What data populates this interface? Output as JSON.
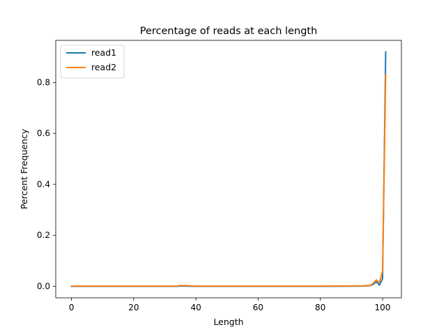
{
  "chart_data": {
    "type": "line",
    "title": "Percentage of reads at each length",
    "xlabel": "Length",
    "ylabel": "Percent Frequency",
    "xlim": [
      -5.05,
      106.05
    ],
    "ylim": [
      -0.045,
      0.965
    ],
    "xticks": [
      0,
      20,
      40,
      60,
      80,
      100
    ],
    "xtick_labels": [
      "0",
      "20",
      "40",
      "60",
      "80",
      "100"
    ],
    "yticks": [
      0.0,
      0.2,
      0.4,
      0.6,
      0.8
    ],
    "ytick_labels": [
      "0.0",
      "0.2",
      "0.4",
      "0.6",
      "0.8"
    ],
    "grid": false,
    "legend_position": "top-left",
    "series": [
      {
        "name": "read1",
        "color": "#1f77b4",
        "points": [
          [
            0,
            0.0
          ],
          [
            34,
            0.0
          ],
          [
            35,
            0.001
          ],
          [
            36,
            0.001
          ],
          [
            40,
            0.0
          ],
          [
            80,
            0.0
          ],
          [
            94,
            0.001
          ],
          [
            96,
            0.003
          ],
          [
            97,
            0.008
          ],
          [
            98,
            0.018
          ],
          [
            99,
            0.005
          ],
          [
            100,
            0.03
          ],
          [
            101,
            0.92
          ]
        ]
      },
      {
        "name": "read2",
        "color": "#ff7f0e",
        "points": [
          [
            0,
            0.001
          ],
          [
            34,
            0.001
          ],
          [
            35,
            0.003
          ],
          [
            37,
            0.003
          ],
          [
            38,
            0.002
          ],
          [
            40,
            0.001
          ],
          [
            80,
            0.001
          ],
          [
            94,
            0.002
          ],
          [
            96,
            0.004
          ],
          [
            97,
            0.012
          ],
          [
            98,
            0.025
          ],
          [
            99,
            0.015
          ],
          [
            100,
            0.06
          ],
          [
            101,
            0.83
          ]
        ]
      }
    ]
  }
}
